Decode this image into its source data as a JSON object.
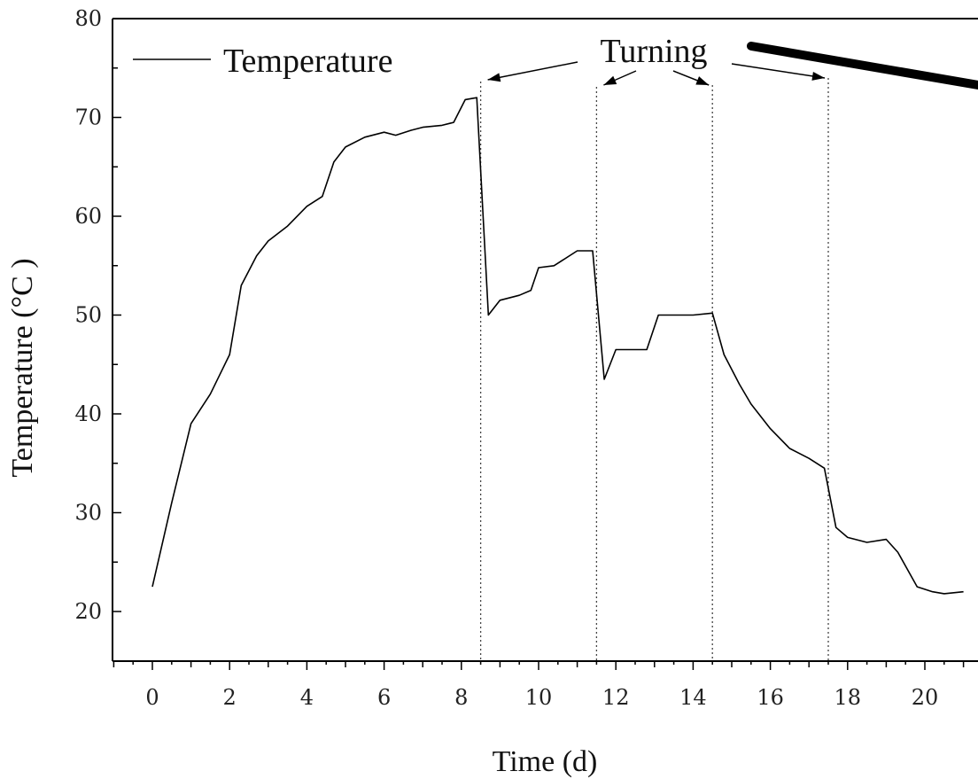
{
  "chart_data": {
    "type": "line",
    "title": "",
    "xlabel": "Time (d)",
    "ylabel": "Temperature (°C )",
    "xlim": [
      -1,
      21.5
    ],
    "ylim": [
      15,
      80
    ],
    "x_ticks": [
      0,
      2,
      4,
      6,
      8,
      10,
      12,
      14,
      16,
      18,
      20
    ],
    "y_ticks": [
      20,
      30,
      40,
      50,
      60,
      70,
      80
    ],
    "grid": false,
    "legend": {
      "position": "top-left",
      "entries": [
        "Temperature"
      ]
    },
    "series": [
      {
        "name": "Temperature",
        "color": "#000000",
        "points": [
          [
            0,
            22.5
          ],
          [
            0.5,
            31
          ],
          [
            1,
            39
          ],
          [
            1.5,
            42
          ],
          [
            2,
            46
          ],
          [
            2.3,
            53
          ],
          [
            2.7,
            56
          ],
          [
            3,
            57.5
          ],
          [
            3.5,
            59
          ],
          [
            4,
            61
          ],
          [
            4.4,
            62
          ],
          [
            4.7,
            65.5
          ],
          [
            5,
            67
          ],
          [
            5.5,
            68
          ],
          [
            6,
            68.5
          ],
          [
            6.3,
            68.2
          ],
          [
            6.7,
            68.7
          ],
          [
            7,
            69
          ],
          [
            7.5,
            69.2
          ],
          [
            7.8,
            69.5
          ],
          [
            8.1,
            71.8
          ],
          [
            8.4,
            72
          ],
          [
            8.7,
            50
          ],
          [
            9,
            51.5
          ],
          [
            9.5,
            52
          ],
          [
            9.8,
            52.5
          ],
          [
            10,
            54.8
          ],
          [
            10.4,
            55
          ],
          [
            11,
            56.5
          ],
          [
            11.4,
            56.5
          ],
          [
            11.7,
            43.5
          ],
          [
            12,
            46.5
          ],
          [
            12.5,
            46.5
          ],
          [
            12.8,
            46.5
          ],
          [
            13.1,
            50
          ],
          [
            13.5,
            50
          ],
          [
            14,
            50
          ],
          [
            14.5,
            50.2
          ],
          [
            14.8,
            46
          ],
          [
            15.2,
            43
          ],
          [
            15.5,
            41
          ],
          [
            16,
            38.5
          ],
          [
            16.5,
            36.5
          ],
          [
            17,
            35.5
          ],
          [
            17.4,
            34.5
          ],
          [
            17.7,
            28.5
          ],
          [
            18,
            27.5
          ],
          [
            18.5,
            27
          ],
          [
            19,
            27.3
          ],
          [
            19.3,
            26
          ],
          [
            19.8,
            22.5
          ],
          [
            20.2,
            22
          ],
          [
            20.5,
            21.8
          ],
          [
            21,
            22
          ]
        ]
      }
    ],
    "turning_points_x": [
      8.5,
      11.5,
      14.5,
      17.5
    ],
    "annotations": [
      {
        "text": "Turning",
        "targets_x": [
          8.5,
          11.5,
          14.5,
          17.5
        ]
      }
    ]
  }
}
